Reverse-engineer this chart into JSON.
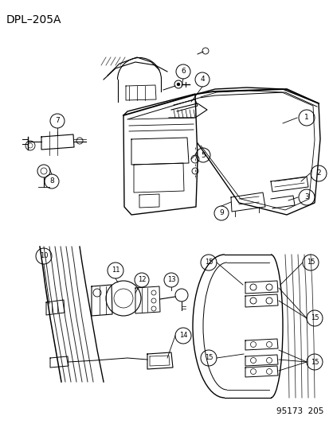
{
  "title": "DPL–205A",
  "footer": "95173  205",
  "bg_color": "#ffffff",
  "title_fontsize": 10,
  "footer_fontsize": 7.5
}
